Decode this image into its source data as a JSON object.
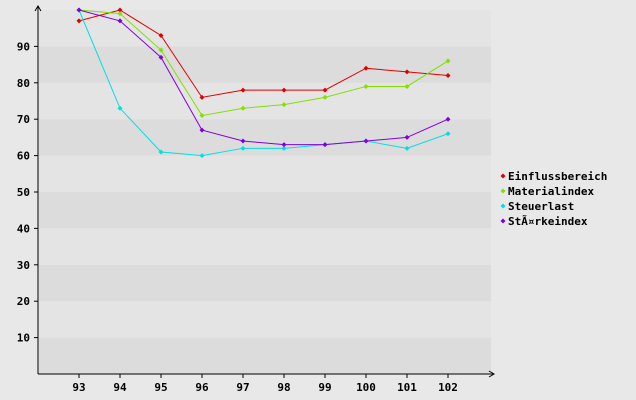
{
  "chart_data": {
    "type": "line",
    "title": "",
    "xlabel": "",
    "ylabel": "",
    "x": [
      93,
      94,
      95,
      96,
      97,
      98,
      99,
      100,
      101,
      102
    ],
    "x_tick_labels": [
      "93",
      "94",
      "95",
      "96",
      "97",
      "98",
      "99",
      "100",
      "101",
      "102"
    ],
    "ylim": [
      0,
      100
    ],
    "y_ticks": [
      10,
      20,
      30,
      40,
      50,
      60,
      70,
      80,
      90
    ],
    "y_tick_labels": [
      "10",
      "20",
      "30",
      "40",
      "50",
      "60",
      "70",
      "80",
      "90"
    ],
    "grid": "alternating horizontal bands",
    "legend_position": "right",
    "series": [
      {
        "name": "Einflussbereich",
        "color": "#e00000",
        "values": [
          97,
          100,
          93,
          76,
          78,
          78,
          78,
          84,
          83,
          82
        ]
      },
      {
        "name": "Materialindex",
        "color": "#80e000",
        "values": [
          100,
          99,
          89,
          71,
          73,
          74,
          76,
          79,
          79,
          86
        ]
      },
      {
        "name": "Steuerlast",
        "color": "#00e0e0",
        "values": [
          100,
          73,
          61,
          60,
          62,
          62,
          63,
          64,
          62,
          66
        ]
      },
      {
        "name": "StÃ¤rkeindex",
        "color": "#8000e0",
        "values": [
          100,
          97,
          87,
          67,
          64,
          63,
          63,
          64,
          65,
          70
        ]
      }
    ]
  }
}
